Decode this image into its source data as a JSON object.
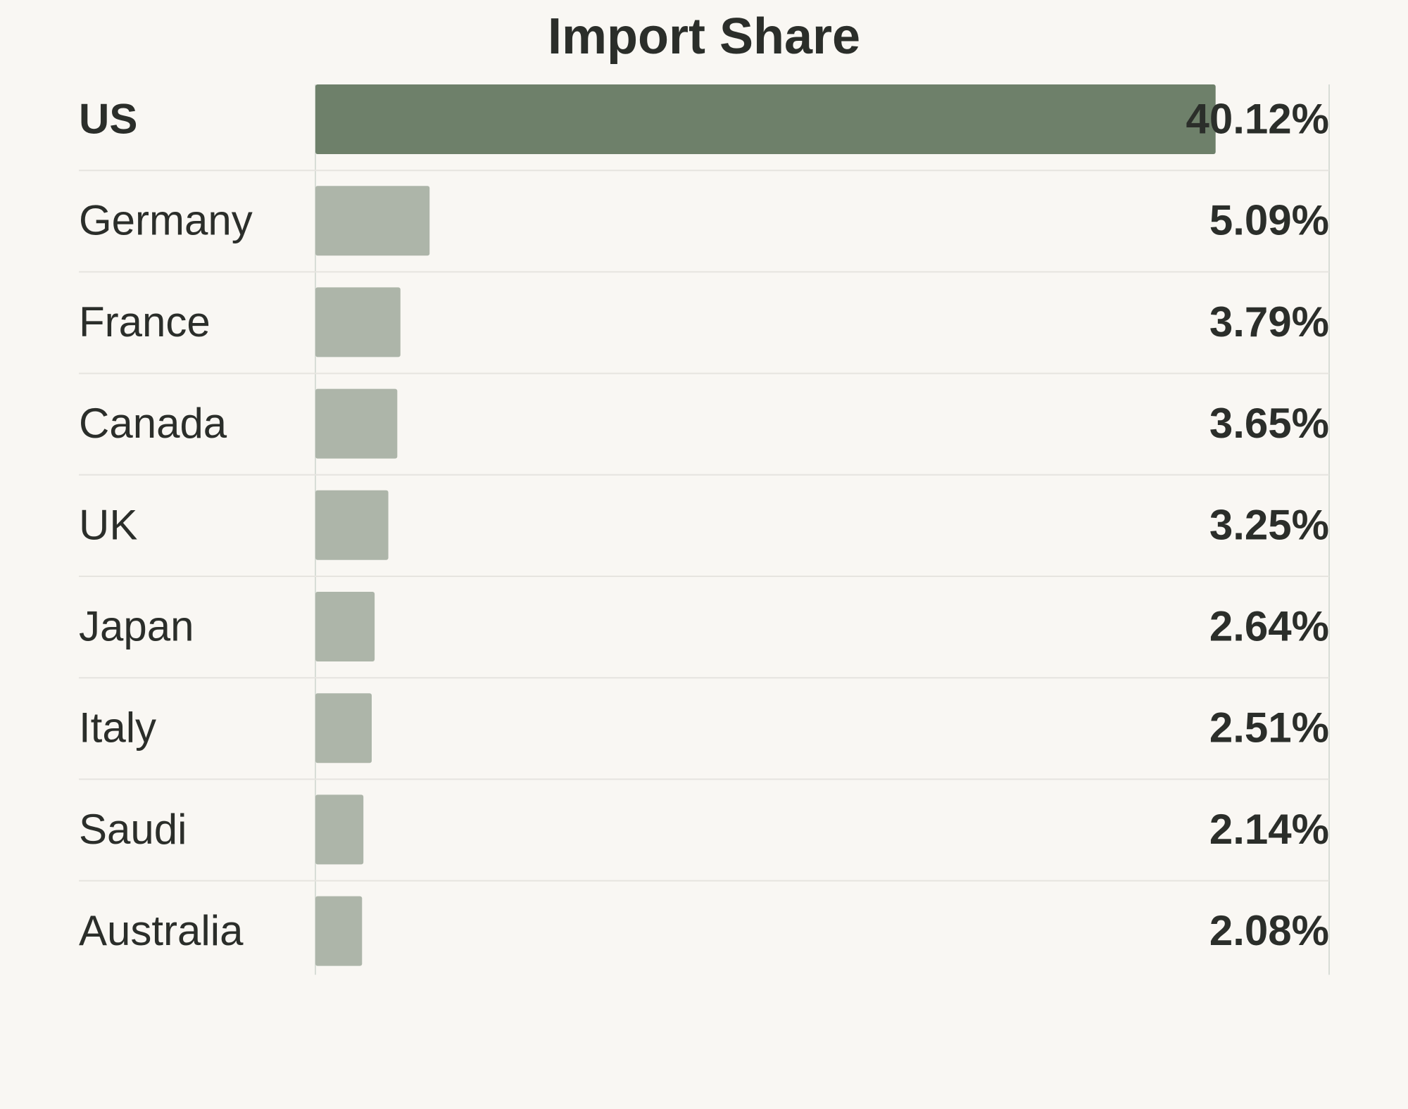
{
  "chart_data": {
    "type": "bar",
    "orientation": "horizontal",
    "title": "Import Share",
    "xlabel": "",
    "ylabel": "",
    "categories": [
      "US",
      "Germany",
      "France",
      "Canada",
      "UK",
      "Japan",
      "Italy",
      "Saudi",
      "Australia"
    ],
    "values": [
      40.12,
      5.09,
      3.79,
      3.65,
      3.25,
      2.64,
      2.51,
      2.14,
      2.08
    ],
    "value_labels": [
      "40.12%",
      "5.09%",
      "3.79%",
      "3.65%",
      "3.25%",
      "2.64%",
      "2.51%",
      "2.14%",
      "2.08%"
    ],
    "unit": "%",
    "xlim": [
      0,
      45
    ],
    "highlighted_category": "US",
    "grid": false,
    "legend": "none",
    "colors": {
      "highlight_bar": "#6e806a",
      "bar": "#adb5a9",
      "text": "#2b2e2a",
      "background": "#f9f7f3",
      "divider": "#e6e4df",
      "axis": "#d8ddd6"
    }
  }
}
